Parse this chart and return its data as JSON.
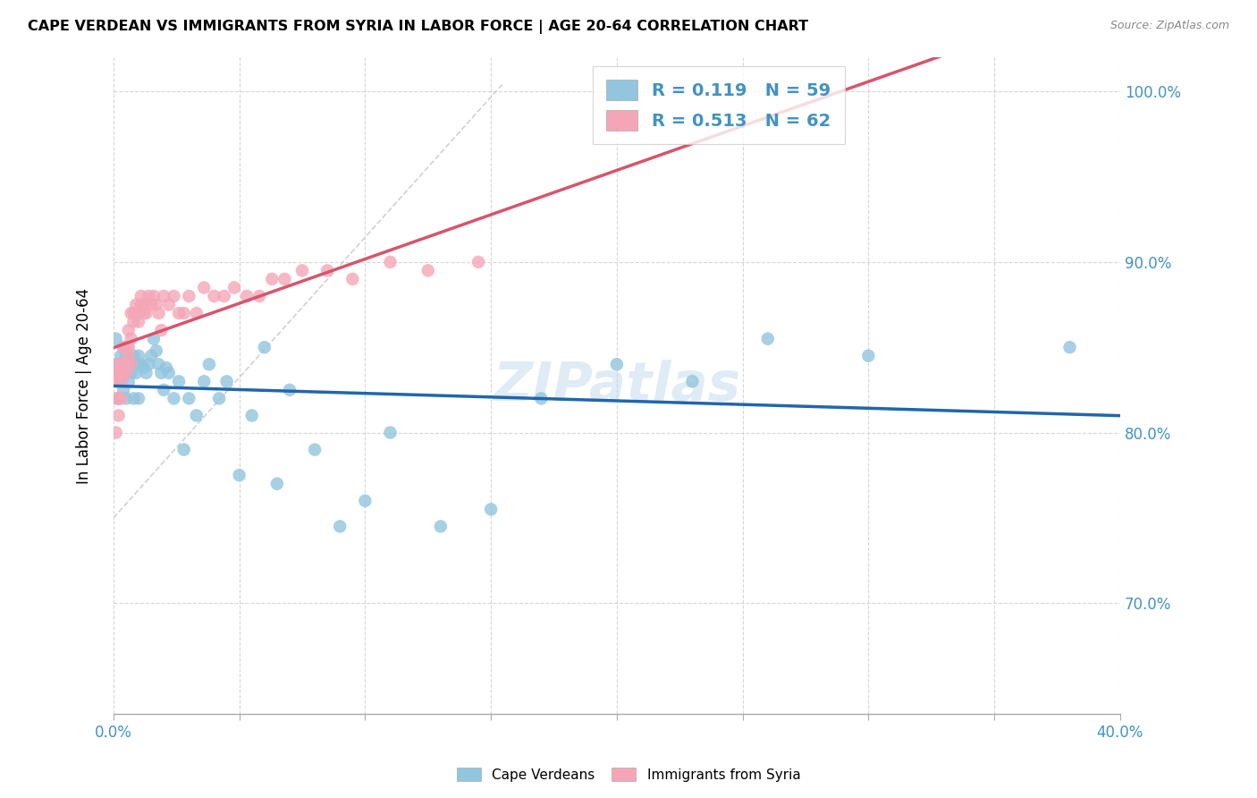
{
  "title": "CAPE VERDEAN VS IMMIGRANTS FROM SYRIA IN LABOR FORCE | AGE 20-64 CORRELATION CHART",
  "source": "Source: ZipAtlas.com",
  "ylabel": "In Labor Force | Age 20-64",
  "xlim": [
    0.0,
    0.4
  ],
  "ylim": [
    0.635,
    1.02
  ],
  "xticks": [
    0.0,
    0.05,
    0.1,
    0.15,
    0.2,
    0.25,
    0.3,
    0.35,
    0.4
  ],
  "yticks": [
    0.7,
    0.8,
    0.9,
    1.0
  ],
  "ytick_labels": [
    "70.0%",
    "80.0%",
    "90.0%",
    "100.0%"
  ],
  "xtick_labels_show": [
    "0.0%",
    "40.0%"
  ],
  "blue_color": "#92c5de",
  "pink_color": "#f4a6b8",
  "trend_blue": "#2166ac",
  "trend_pink": "#d6556d",
  "R_blue": 0.119,
  "N_blue": 59,
  "R_pink": 0.513,
  "N_pink": 62,
  "watermark": "ZIPatlas",
  "cape_verdean_x": [
    0.001,
    0.001,
    0.002,
    0.002,
    0.003,
    0.003,
    0.004,
    0.004,
    0.005,
    0.005,
    0.005,
    0.006,
    0.006,
    0.007,
    0.007,
    0.008,
    0.008,
    0.009,
    0.009,
    0.01,
    0.01,
    0.011,
    0.012,
    0.013,
    0.014,
    0.015,
    0.016,
    0.017,
    0.018,
    0.019,
    0.02,
    0.021,
    0.022,
    0.024,
    0.026,
    0.028,
    0.03,
    0.033,
    0.036,
    0.038,
    0.042,
    0.045,
    0.05,
    0.055,
    0.06,
    0.065,
    0.07,
    0.08,
    0.09,
    0.1,
    0.11,
    0.13,
    0.15,
    0.17,
    0.2,
    0.23,
    0.26,
    0.3,
    0.38
  ],
  "cape_verdean_y": [
    0.84,
    0.855,
    0.82,
    0.835,
    0.845,
    0.83,
    0.85,
    0.825,
    0.835,
    0.845,
    0.82,
    0.84,
    0.83,
    0.84,
    0.835,
    0.845,
    0.82,
    0.84,
    0.835,
    0.845,
    0.82,
    0.84,
    0.838,
    0.835,
    0.84,
    0.845,
    0.855,
    0.848,
    0.84,
    0.835,
    0.825,
    0.838,
    0.835,
    0.82,
    0.83,
    0.79,
    0.82,
    0.81,
    0.83,
    0.84,
    0.82,
    0.83,
    0.775,
    0.81,
    0.85,
    0.77,
    0.825,
    0.79,
    0.745,
    0.76,
    0.8,
    0.745,
    0.755,
    0.82,
    0.84,
    0.83,
    0.855,
    0.845,
    0.85
  ],
  "syria_x": [
    0.001,
    0.001,
    0.001,
    0.001,
    0.002,
    0.002,
    0.002,
    0.002,
    0.003,
    0.003,
    0.003,
    0.003,
    0.004,
    0.004,
    0.004,
    0.005,
    0.005,
    0.005,
    0.006,
    0.006,
    0.006,
    0.007,
    0.007,
    0.007,
    0.008,
    0.008,
    0.009,
    0.009,
    0.01,
    0.01,
    0.011,
    0.011,
    0.012,
    0.012,
    0.013,
    0.014,
    0.015,
    0.016,
    0.017,
    0.018,
    0.019,
    0.02,
    0.022,
    0.024,
    0.026,
    0.028,
    0.03,
    0.033,
    0.036,
    0.04,
    0.044,
    0.048,
    0.053,
    0.058,
    0.063,
    0.068,
    0.075,
    0.085,
    0.095,
    0.11,
    0.125,
    0.145
  ],
  "syria_y": [
    0.8,
    0.82,
    0.83,
    0.835,
    0.81,
    0.82,
    0.835,
    0.84,
    0.82,
    0.83,
    0.84,
    0.835,
    0.84,
    0.85,
    0.835,
    0.84,
    0.85,
    0.835,
    0.845,
    0.86,
    0.85,
    0.855,
    0.87,
    0.84,
    0.87,
    0.865,
    0.875,
    0.87,
    0.87,
    0.865,
    0.88,
    0.875,
    0.87,
    0.875,
    0.87,
    0.88,
    0.875,
    0.88,
    0.875,
    0.87,
    0.86,
    0.88,
    0.875,
    0.88,
    0.87,
    0.87,
    0.88,
    0.87,
    0.885,
    0.88,
    0.88,
    0.885,
    0.88,
    0.88,
    0.89,
    0.89,
    0.895,
    0.895,
    0.89,
    0.9,
    0.895,
    0.9
  ]
}
